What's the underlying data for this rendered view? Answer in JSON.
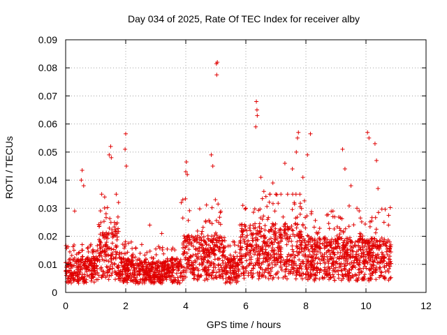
{
  "chart_data": {
    "type": "scatter",
    "title": "Day 034 of 2025, Rate Of TEC Index for receiver alby",
    "xlabel": "GPS time / hours",
    "ylabel": "ROTI / TECUs",
    "xlim": [
      0,
      12
    ],
    "ylim": [
      0,
      0.09
    ],
    "x_ticks": [
      "0",
      "2",
      "4",
      "6",
      "8",
      "10",
      "12"
    ],
    "y_ticks": [
      "0",
      "0.01",
      "0.02",
      "0.03",
      "0.04",
      "0.05",
      "0.06",
      "0.07",
      "0.08",
      "0.09"
    ],
    "grid": true,
    "marker": "+",
    "color": "#e00000",
    "series": [
      {
        "name": "ROTI",
        "note": "dense cloud of points from 0 to ~10.85 h, mostly 0.002-0.02 TECU; notable peaks listed in x/y",
        "x": [
          5.02,
          5.05,
          5.03,
          6.35,
          6.37,
          6.38,
          6.33,
          7.75,
          7.72,
          7.68,
          8.15,
          10.05,
          10.1,
          10.3,
          9.22,
          1.5,
          1.45,
          1.52,
          2.0,
          1.98,
          2.02,
          4.02,
          4.0,
          4.05,
          4.85,
          4.9,
          0.55,
          0.52,
          0.6,
          7.3,
          7.55,
          7.9,
          8.05,
          9.3,
          9.5,
          10.35,
          10.4,
          1.2,
          1.3,
          3.9,
          3.85,
          5.9,
          6.0,
          6.5,
          6.6,
          6.9,
          7.0,
          8.9,
          9.7,
          10.6,
          10.75,
          0.3,
          2.8,
          3.2
        ],
        "y": [
          0.0815,
          0.082,
          0.0775,
          0.068,
          0.065,
          0.063,
          0.059,
          0.057,
          0.055,
          0.05,
          0.0565,
          0.057,
          0.055,
          0.053,
          0.051,
          0.052,
          0.049,
          0.048,
          0.0565,
          0.051,
          0.045,
          0.0465,
          0.043,
          0.042,
          0.049,
          0.045,
          0.0435,
          0.04,
          0.038,
          0.046,
          0.044,
          0.041,
          0.049,
          0.044,
          0.038,
          0.047,
          0.037,
          0.035,
          0.034,
          0.033,
          0.032,
          0.031,
          0.03,
          0.041,
          0.036,
          0.039,
          0.035,
          0.029,
          0.03,
          0.025,
          0.024,
          0.029,
          0.024,
          0.021
        ]
      }
    ]
  }
}
